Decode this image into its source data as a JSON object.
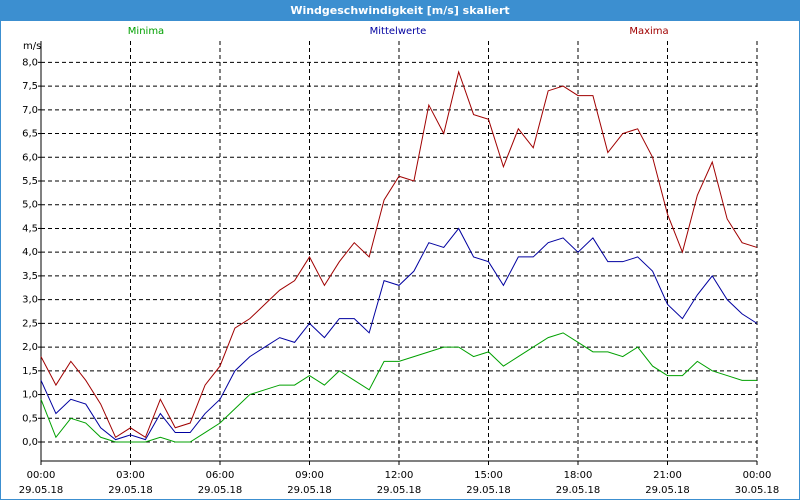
{
  "window_title": "Windgeschwindigkeit [m/s] skaliert",
  "chart_data": {
    "type": "line",
    "ylabel": "m/s",
    "xlim": [
      0,
      24
    ],
    "ylim": [
      -0.4,
      8.45
    ],
    "grid": true,
    "yticks": [
      {
        "value": 0,
        "label": "0,0"
      },
      {
        "value": 0.5,
        "label": "0,5"
      },
      {
        "value": 1,
        "label": "1,0"
      },
      {
        "value": 1.5,
        "label": "1,5"
      },
      {
        "value": 2,
        "label": "2,0"
      },
      {
        "value": 2.5,
        "label": "2,5"
      },
      {
        "value": 3,
        "label": "3,0"
      },
      {
        "value": 3.5,
        "label": "3,5"
      },
      {
        "value": 4,
        "label": "4,0"
      },
      {
        "value": 4.5,
        "label": "4,5"
      },
      {
        "value": 5,
        "label": "5,0"
      },
      {
        "value": 5.5,
        "label": "5,5"
      },
      {
        "value": 6,
        "label": "6,0"
      },
      {
        "value": 6.5,
        "label": "6,5"
      },
      {
        "value": 7,
        "label": "7,0"
      },
      {
        "value": 7.5,
        "label": "7,5"
      },
      {
        "value": 8,
        "label": "8,0"
      }
    ],
    "xticks": [
      {
        "value": 0,
        "label": "00:00",
        "date": "29.05.18"
      },
      {
        "value": 3,
        "label": "03:00",
        "date": "29.05.18"
      },
      {
        "value": 6,
        "label": "06:00",
        "date": "29.05.18"
      },
      {
        "value": 9,
        "label": "09:00",
        "date": "29.05.18"
      },
      {
        "value": 12,
        "label": "12:00",
        "date": "29.05.18"
      },
      {
        "value": 15,
        "label": "15:00",
        "date": "29.05.18"
      },
      {
        "value": 18,
        "label": "18:00",
        "date": "29.05.18"
      },
      {
        "value": 21,
        "label": "21:00",
        "date": "29.05.18"
      },
      {
        "value": 24,
        "label": "00:00",
        "date": "30.05.18"
      }
    ],
    "x": [
      0,
      0.5,
      1,
      1.5,
      2,
      2.5,
      3,
      3.5,
      4,
      4.5,
      5,
      5.5,
      6,
      6.5,
      7,
      7.5,
      8,
      8.5,
      9,
      9.5,
      10,
      10.5,
      11,
      11.5,
      12,
      12.5,
      13,
      13.5,
      14,
      14.5,
      15,
      15.5,
      16,
      16.5,
      17,
      17.5,
      18,
      18.5,
      19,
      19.5,
      20,
      20.5,
      21,
      21.5,
      22,
      22.5,
      23,
      23.5,
      24
    ],
    "series": [
      {
        "name": "Minima",
        "color": "#00a000",
        "values": [
          0.9,
          0.1,
          0.5,
          0.4,
          0.1,
          0.0,
          0.0,
          0.0,
          0.1,
          0.0,
          0.0,
          0.2,
          0.4,
          0.7,
          1.0,
          1.1,
          1.2,
          1.2,
          1.4,
          1.2,
          1.5,
          1.3,
          1.1,
          1.7,
          1.7,
          1.8,
          1.9,
          2.0,
          2.0,
          1.8,
          1.9,
          1.6,
          1.8,
          2.0,
          2.2,
          2.3,
          2.1,
          1.9,
          1.9,
          1.8,
          2.0,
          1.6,
          1.4,
          1.4,
          1.7,
          1.5,
          1.4,
          1.3,
          1.3
        ]
      },
      {
        "name": "Mittelwerte",
        "color": "#0000a0",
        "values": [
          1.3,
          0.6,
          0.9,
          0.8,
          0.3,
          0.05,
          0.15,
          0.05,
          0.6,
          0.2,
          0.2,
          0.6,
          0.9,
          1.5,
          1.8,
          2.0,
          2.2,
          2.1,
          2.5,
          2.2,
          2.6,
          2.6,
          2.3,
          3.4,
          3.3,
          3.6,
          4.2,
          4.1,
          4.5,
          3.9,
          3.8,
          3.3,
          3.9,
          3.9,
          4.2,
          4.3,
          4.0,
          4.3,
          3.8,
          3.8,
          3.9,
          3.6,
          2.9,
          2.6,
          3.1,
          3.5,
          3.0,
          2.7,
          2.5
        ]
      },
      {
        "name": "Maxima",
        "color": "#a00000",
        "values": [
          1.8,
          1.2,
          1.7,
          1.3,
          0.8,
          0.1,
          0.3,
          0.1,
          0.9,
          0.3,
          0.4,
          1.2,
          1.6,
          2.4,
          2.6,
          2.9,
          3.2,
          3.4,
          3.9,
          3.3,
          3.8,
          4.2,
          3.9,
          5.1,
          5.6,
          5.5,
          7.1,
          6.5,
          7.8,
          6.9,
          6.8,
          5.8,
          6.6,
          6.2,
          7.4,
          7.5,
          7.3,
          7.3,
          6.1,
          6.5,
          6.6,
          6.0,
          4.8,
          4.0,
          5.2,
          5.9,
          4.7,
          4.2,
          4.1
        ]
      }
    ]
  }
}
